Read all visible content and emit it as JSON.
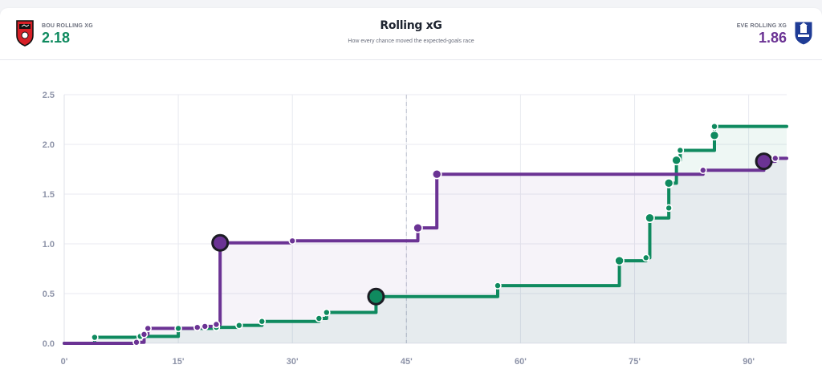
{
  "header": {
    "title": "Rolling xG",
    "subtitle": "How every chance moved the expected-goals race",
    "home": {
      "label": "BOU ROLLING XG",
      "value": "2.18",
      "crest_icon": "bournemouth-crest-icon",
      "color": "#0f8a5f"
    },
    "away": {
      "label": "EVE ROLLING XG",
      "value": "1.86",
      "crest_icon": "everton-crest-icon",
      "color": "#6b3394"
    }
  },
  "chart_data": {
    "type": "line",
    "x_ticks": [
      "0'",
      "15'",
      "30'",
      "45'",
      "60'",
      "75'",
      "90'"
    ],
    "y_ticks": [
      "0.0",
      "0.5",
      "1.0",
      "1.5",
      "2.0",
      "2.5"
    ],
    "xlim": [
      0,
      95
    ],
    "ylim": [
      0,
      2.5
    ],
    "halftime_minute": 45,
    "grid": true,
    "series": [
      {
        "name": "BOU",
        "color": "#0f8a5f",
        "shots": [
          {
            "minute": 4,
            "xg": 0.06
          },
          {
            "minute": 10,
            "xg": 0.07
          },
          {
            "minute": 15,
            "xg": 0.15
          },
          {
            "minute": 20,
            "xg": 0.16
          },
          {
            "minute": 23,
            "xg": 0.18
          },
          {
            "minute": 26,
            "xg": 0.22
          },
          {
            "minute": 33.5,
            "xg": 0.25
          },
          {
            "minute": 34.5,
            "xg": 0.31
          },
          {
            "minute": 41,
            "xg": 0.47,
            "goal": true
          },
          {
            "minute": 57,
            "xg": 0.58
          },
          {
            "minute": 73,
            "xg": 0.83
          },
          {
            "minute": 76.5,
            "xg": 0.86
          },
          {
            "minute": 77,
            "xg": 1.26
          },
          {
            "minute": 79.5,
            "xg": 1.36
          },
          {
            "minute": 79.5,
            "xg": 1.61
          },
          {
            "minute": 80.5,
            "xg": 1.84
          },
          {
            "minute": 81,
            "xg": 1.94
          },
          {
            "minute": 85.5,
            "xg": 2.09
          },
          {
            "minute": 85.5,
            "xg": 2.18
          }
        ],
        "final": 2.18
      },
      {
        "name": "EVE",
        "color": "#6b3394",
        "shots": [
          {
            "minute": 9.5,
            "xg": 0.01
          },
          {
            "minute": 10.5,
            "xg": 0.09
          },
          {
            "minute": 11,
            "xg": 0.15
          },
          {
            "minute": 17.5,
            "xg": 0.16
          },
          {
            "minute": 18.5,
            "xg": 0.17
          },
          {
            "minute": 20,
            "xg": 0.19
          },
          {
            "minute": 20.5,
            "xg": 1.01,
            "goal": true
          },
          {
            "minute": 30,
            "xg": 1.03
          },
          {
            "minute": 46.5,
            "xg": 1.16
          },
          {
            "minute": 49,
            "xg": 1.7
          },
          {
            "minute": 84,
            "xg": 1.74
          },
          {
            "minute": 92,
            "xg": 1.83,
            "goal": true
          },
          {
            "minute": 93.5,
            "xg": 1.86
          }
        ],
        "final": 1.86
      }
    ]
  }
}
